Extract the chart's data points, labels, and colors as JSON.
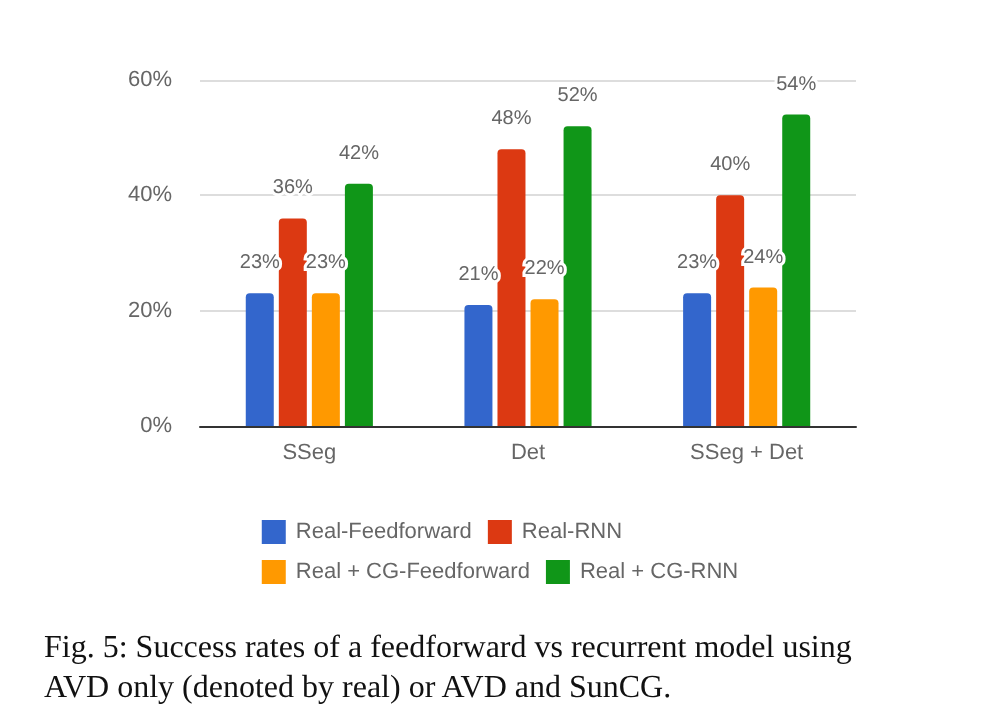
{
  "chart_data": {
    "type": "bar",
    "categories": [
      "SSeg",
      "Det",
      "SSeg + Det"
    ],
    "series": [
      {
        "name": "Real-Feedforward",
        "color": "#3366cc",
        "values": [
          23,
          21,
          23
        ],
        "value_labels": [
          "23%",
          "21%",
          "23%"
        ]
      },
      {
        "name": "Real-RNN",
        "color": "#dc3912",
        "values": [
          36,
          48,
          40
        ],
        "value_labels": [
          "36%",
          "48%",
          "40%"
        ]
      },
      {
        "name": "Real + CG-Feedforward",
        "color": "#ff9900",
        "values": [
          23,
          22,
          24
        ],
        "value_labels": [
          "23%",
          "22%",
          "24%"
        ]
      },
      {
        "name": "Real + CG-RNN",
        "color": "#109618",
        "values": [
          42,
          52,
          54
        ],
        "value_labels": [
          "42%",
          "52%",
          "54%"
        ]
      }
    ],
    "ylim": [
      0,
      60
    ],
    "yticks": [
      {
        "value": 0,
        "label": "0%"
      },
      {
        "value": 20,
        "label": "20%"
      },
      {
        "value": 40,
        "label": "40%"
      },
      {
        "value": 60,
        "label": "60%"
      }
    ],
    "grid": "y",
    "legend": "bottom",
    "annotations": [
      "Fig. 5: Success rates of a feedforward vs recurrent model using AVD only (denoted by real) or AVD and SunCG."
    ]
  }
}
